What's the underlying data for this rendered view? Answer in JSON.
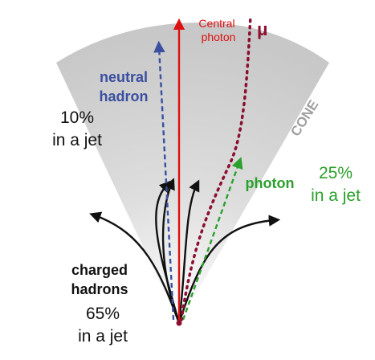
{
  "labels": {
    "central_photon_line1": "Central",
    "central_photon_line2": "photon",
    "muon": "μ",
    "cone": "CONE",
    "neutral_hadron_line1": "neutral",
    "neutral_hadron_line2": "hadron",
    "neutral_fraction_line1": "10%",
    "neutral_fraction_line2": "in a jet",
    "photon": "photon",
    "photon_fraction_line1": "25%",
    "photon_fraction_line2": "in a jet",
    "charged_hadrons_line1": "charged",
    "charged_hadrons_line2": "hadrons",
    "charged_fraction_line1": "65%",
    "charged_fraction_line2": "in a jet"
  },
  "colors": {
    "central_photon": "#dd1111",
    "muon": "#8b1030",
    "neutral_hadron": "#3a4fa0",
    "photon": "#2ca02c",
    "charged": "#111111",
    "cone_fill": "#d0d0d0",
    "cone_label": "#a0a0a0"
  }
}
